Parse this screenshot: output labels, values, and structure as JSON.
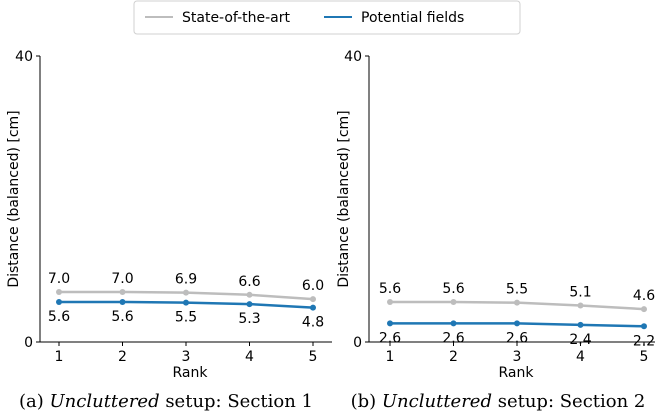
{
  "legend": {
    "entries": [
      {
        "label": "State-of-the-art",
        "color": "#bdbdbd"
      },
      {
        "label": "Potential fields",
        "color": "#1f77b4"
      }
    ]
  },
  "chart_data": [
    {
      "type": "line",
      "xlabel": "Rank",
      "ylabel": "Distance (balanced) [cm]",
      "ylim": [
        0,
        40
      ],
      "yticks": [
        0,
        40
      ],
      "x": [
        1,
        2,
        3,
        4,
        5
      ],
      "series": [
        {
          "name": "State-of-the-art",
          "color": "#bdbdbd",
          "values": [
            7.0,
            7.0,
            6.9,
            6.6,
            6.0
          ],
          "labels": [
            "7.0",
            "7.0",
            "6.9",
            "6.6",
            "6.0"
          ]
        },
        {
          "name": "Potential fields",
          "color": "#1f77b4",
          "values": [
            5.6,
            5.6,
            5.5,
            5.3,
            4.8
          ],
          "labels": [
            "5.6",
            "5.6",
            "5.5",
            "5.3",
            "4.8"
          ]
        }
      ],
      "caption": {
        "prefix": "(a) ",
        "emph": "Uncluttered",
        "suffix": " setup: Section 1"
      }
    },
    {
      "type": "line",
      "xlabel": "Rank",
      "ylabel": "Distance (balanced) [cm]",
      "ylim": [
        0,
        40
      ],
      "yticks": [
        0,
        40
      ],
      "x": [
        1,
        2,
        3,
        4,
        5
      ],
      "series": [
        {
          "name": "State-of-the-art",
          "color": "#bdbdbd",
          "values": [
            5.6,
            5.6,
            5.5,
            5.1,
            4.6
          ],
          "labels": [
            "5.6",
            "5.6",
            "5.5",
            "5.1",
            "4.6"
          ]
        },
        {
          "name": "Potential fields",
          "color": "#1f77b4",
          "values": [
            2.6,
            2.6,
            2.6,
            2.4,
            2.2
          ],
          "labels": [
            "2.6",
            "2.6",
            "2.6",
            "2.4",
            "2.2"
          ]
        }
      ],
      "caption": {
        "prefix": "(b) ",
        "emph": "Uncluttered",
        "suffix": " setup: Section 2"
      }
    }
  ]
}
